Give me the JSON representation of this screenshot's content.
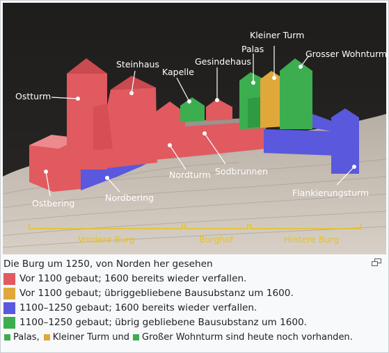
{
  "image": {
    "labels": {
      "ostturm": "Ostturm",
      "steinhaus": "Steinhaus",
      "kapelle": "Kapelle",
      "gesindehaus": "Gesindehaus",
      "palas": "Palas",
      "kleiner_turm": "Kleiner Turm",
      "grosser_wohnturm": "Grosser Wohnturm",
      "nordturm": "Nordturm",
      "sodbrunnen": "Sodbrunnen",
      "ostbering": "Ostbering",
      "nordbering": "Nordbering",
      "flankierungsturm": "Flankierungsturm"
    },
    "sections": {
      "vordere": "Vordere Burg",
      "burghof": "Burghof",
      "hintere": "Hintere Burg"
    }
  },
  "caption": {
    "title": "Die Burg um 1250, von Norden her gesehen",
    "legend": [
      {
        "color": "#e05a60",
        "text": "Vor 1100 gebaut; 1600 bereits wieder verfallen."
      },
      {
        "color": "#e0a83a",
        "text": "Vor 1100 gebaut; übriggebliebene Bausubstanz um 1600."
      },
      {
        "color": "#5a58dc",
        "text": "1100–1250 gebaut; 1600 bereits wieder verfallen."
      },
      {
        "color": "#3cae4f",
        "text": "1100–1250 gebaut; übrig gebliebene Bausubstanz um 1600."
      }
    ],
    "note": {
      "palas": "Palas,",
      "kleiner": "Kleiner Turm und",
      "rest": "Großer Wohnturm sind heute noch vorhanden.",
      "green": "#3cae4f",
      "yellow": "#e0a83a"
    }
  }
}
